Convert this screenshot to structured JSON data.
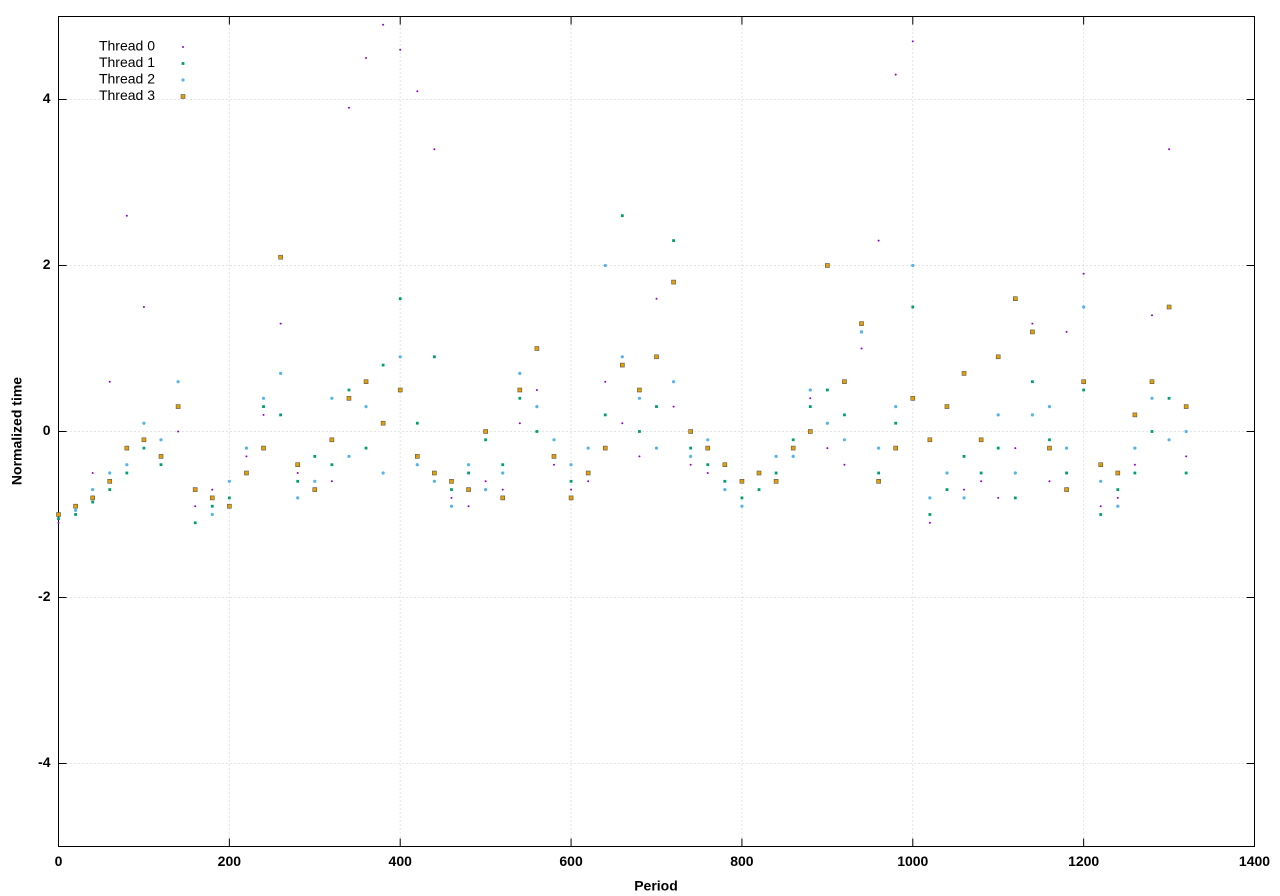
{
  "chart_data": {
    "type": "scatter",
    "xlabel": "Period",
    "ylabel": "Normalized time",
    "xlim": [
      0,
      1400
    ],
    "xticks": [
      0,
      200,
      400,
      600,
      800,
      1000,
      1200,
      1400
    ],
    "ylim": [
      -5,
      5
    ],
    "yticks": [
      -4,
      -2,
      0,
      2,
      4
    ],
    "grid": true,
    "legend": "upper-left",
    "x": [
      0,
      20,
      40,
      60,
      80,
      100,
      120,
      140,
      160,
      180,
      200,
      220,
      240,
      260,
      280,
      300,
      320,
      340,
      360,
      380,
      400,
      420,
      440,
      460,
      480,
      500,
      520,
      540,
      560,
      580,
      600,
      620,
      640,
      660,
      680,
      700,
      720,
      740,
      760,
      780,
      800,
      820,
      840,
      860,
      880,
      900,
      920,
      940,
      960,
      980,
      1000,
      1020,
      1040,
      1060,
      1080,
      1100,
      1120,
      1140,
      1160,
      1180,
      1200,
      1220,
      1240,
      1260,
      1280,
      1300,
      1320
    ],
    "series": [
      {
        "name": "Thread 0",
        "color": "#9400d3",
        "marker": "dot",
        "values": [
          -1.1,
          -0.9,
          -0.5,
          0.6,
          2.6,
          1.5,
          -0.3,
          0.0,
          -0.9,
          -0.7,
          -0.9,
          -0.3,
          0.2,
          1.3,
          -0.5,
          -0.3,
          -0.6,
          3.9,
          4.5,
          4.9,
          4.6,
          4.1,
          3.4,
          -0.8,
          -0.9,
          -0.6,
          -0.7,
          0.1,
          0.5,
          -0.4,
          -0.7,
          -0.6,
          0.6,
          0.1,
          -0.3,
          1.6,
          0.3,
          -0.4,
          -0.5,
          -0.6,
          -0.9,
          -0.7,
          -0.3,
          -0.1,
          0.4,
          -0.2,
          -0.4,
          1.0,
          2.3,
          4.3,
          4.7,
          -1.1,
          -0.5,
          -0.7,
          -0.6,
          -0.8,
          -0.2,
          1.3,
          -0.6,
          1.2,
          1.9,
          -0.9,
          -0.8,
          -0.4,
          1.4,
          3.4,
          -0.3
        ]
      },
      {
        "name": "Thread 1",
        "color": "#009e73",
        "marker": "cross",
        "values": [
          -1.05,
          -1.0,
          -0.85,
          -0.7,
          -0.5,
          -0.2,
          -0.4,
          0.3,
          -1.1,
          -0.9,
          -0.8,
          -0.5,
          0.3,
          0.2,
          -0.6,
          -0.3,
          -0.4,
          0.5,
          -0.2,
          0.8,
          1.6,
          0.1,
          0.9,
          -0.7,
          -0.5,
          -0.1,
          -0.4,
          0.4,
          0.0,
          -0.3,
          -0.6,
          -0.5,
          0.2,
          2.6,
          0.0,
          0.3,
          2.3,
          -0.2,
          -0.4,
          -0.6,
          -0.8,
          -0.7,
          -0.5,
          -0.1,
          0.3,
          0.5,
          0.2,
          1.2,
          -0.5,
          0.1,
          1.5,
          -1.0,
          -0.7,
          -0.3,
          -0.5,
          -0.2,
          -0.8,
          0.6,
          -0.1,
          -0.5,
          0.5,
          -1.0,
          -0.7,
          -0.5,
          0.0,
          0.4,
          -0.5
        ]
      },
      {
        "name": "Thread 2",
        "color": "#56b4e9",
        "marker": "circle",
        "values": [
          -1.0,
          -0.95,
          -0.7,
          -0.5,
          -0.4,
          0.1,
          -0.1,
          0.6,
          -0.7,
          -1.0,
          -0.6,
          -0.2,
          0.4,
          0.7,
          -0.8,
          -0.6,
          0.4,
          -0.3,
          0.3,
          -0.5,
          0.9,
          -0.4,
          -0.6,
          -0.9,
          -0.4,
          -0.7,
          -0.5,
          0.7,
          0.3,
          -0.1,
          -0.4,
          -0.2,
          2.0,
          0.9,
          0.4,
          -0.2,
          0.6,
          -0.3,
          -0.1,
          -0.7,
          -0.9,
          -0.5,
          -0.3,
          -0.3,
          0.5,
          0.1,
          -0.1,
          1.2,
          -0.2,
          0.3,
          2.0,
          -0.8,
          -0.5,
          -0.8,
          -0.1,
          0.2,
          -0.5,
          0.2,
          0.3,
          -0.2,
          1.5,
          -0.6,
          -0.9,
          -0.2,
          0.4,
          -0.1,
          0.0
        ]
      },
      {
        "name": "Thread 3",
        "color": "#e69f00",
        "marker": "square",
        "values": [
          -1.0,
          -0.9,
          -0.8,
          -0.6,
          -0.2,
          -0.1,
          -0.3,
          0.3,
          -0.7,
          -0.8,
          -0.9,
          -0.5,
          -0.2,
          2.1,
          -0.4,
          -0.7,
          -0.1,
          0.4,
          0.6,
          0.1,
          0.5,
          -0.3,
          -0.5,
          -0.6,
          -0.7,
          0.0,
          -0.8,
          0.5,
          1.0,
          -0.3,
          -0.8,
          -0.5,
          -0.2,
          0.8,
          0.5,
          0.9,
          1.8,
          0.0,
          -0.2,
          -0.4,
          -0.6,
          -0.5,
          -0.6,
          -0.2,
          0.0,
          2.0,
          0.6,
          1.3,
          -0.6,
          -0.2,
          0.4,
          -0.1,
          0.3,
          0.7,
          -0.1,
          0.9,
          1.6,
          1.2,
          -0.2,
          -0.7,
          0.6,
          -0.4,
          -0.5,
          0.2,
          0.6,
          1.5,
          0.3
        ]
      }
    ]
  }
}
